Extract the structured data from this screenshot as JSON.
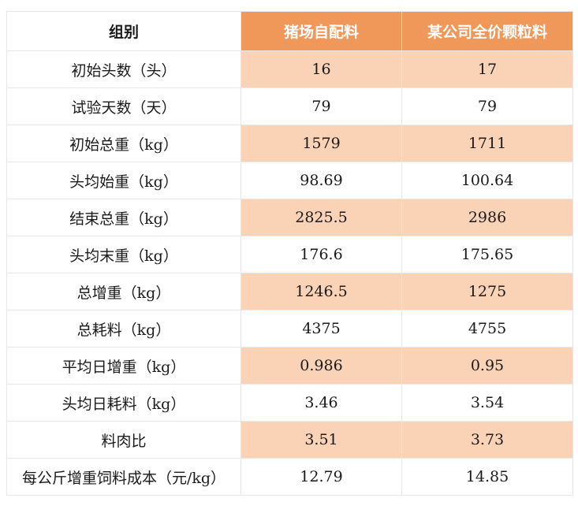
{
  "colors": {
    "header_accent": "#f0975a",
    "row_highlight": "#fad3b7",
    "border": "#e8e8e8"
  },
  "table": {
    "headers": [
      "组别",
      "猪场自配料",
      "某公司全价颗粒料"
    ],
    "rows": [
      {
        "label": "初始头数（头）",
        "a": "16",
        "b": "17"
      },
      {
        "label": "试验天数（天）",
        "a": "79",
        "b": "79"
      },
      {
        "label": "初始总重（kg）",
        "a": "1579",
        "b": "1711"
      },
      {
        "label": "头均始重（kg）",
        "a": "98.69",
        "b": "100.64"
      },
      {
        "label": "结束总重（kg）",
        "a": "2825.5",
        "b": "2986"
      },
      {
        "label": "头均末重（kg）",
        "a": "176.6",
        "b": "175.65"
      },
      {
        "label": "总增重（kg）",
        "a": "1246.5",
        "b": "1275"
      },
      {
        "label": "总耗料（kg）",
        "a": "4375",
        "b": "4755"
      },
      {
        "label": "平均日增重（kg）",
        "a": "0.986",
        "b": "0.95"
      },
      {
        "label": "头均日耗料（kg）",
        "a": "3.46",
        "b": "3.54"
      },
      {
        "label": "料肉比",
        "a": "3.51",
        "b": "3.73"
      },
      {
        "label": "每公斤增重饲料成本（元/kg）",
        "a": "12.79",
        "b": "14.85"
      }
    ]
  }
}
